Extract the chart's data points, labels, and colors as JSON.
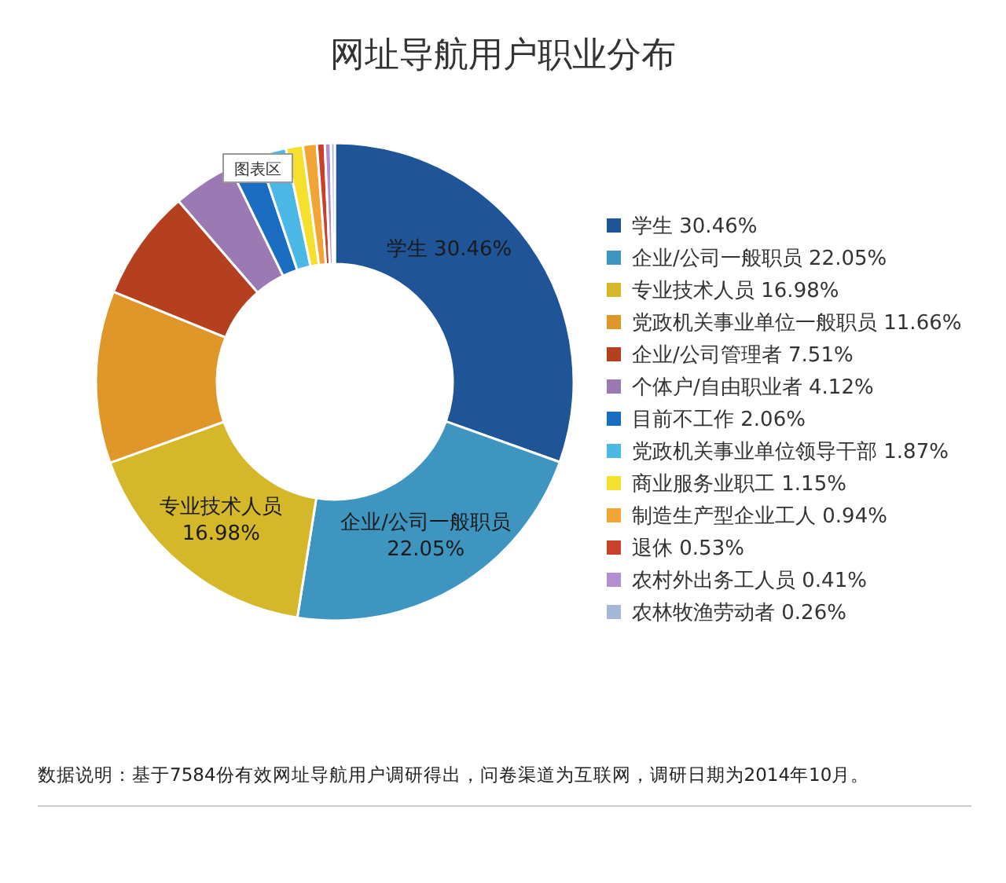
{
  "chart_data": {
    "type": "donut",
    "title": "网址导航用户职业分布",
    "categories": [
      "学生",
      "企业/公司一般职员",
      "专业技术人员",
      "党政机关事业单位一般职员",
      "企业/公司管理者",
      "个体户/自由职业者",
      "目前不工作",
      "党政机关事业单位领导干部",
      "商业服务业职工",
      "制造生产型企业工人",
      "退休",
      "农村外出务工人员",
      "农林牧渔劳动者"
    ],
    "values": [
      30.46,
      22.05,
      16.98,
      11.66,
      7.51,
      4.12,
      2.06,
      1.87,
      1.15,
      0.94,
      0.53,
      0.41,
      0.26
    ],
    "value_labels": [
      "30.46%",
      "22.05%",
      "16.98%",
      "11.66%",
      "7.51%",
      "4.12%",
      "2.06%",
      "1.87%",
      "1.15%",
      "0.94%",
      "0.53%",
      "0.41%",
      "0.26%"
    ],
    "colors": [
      "#1f5597",
      "#3e96c0",
      "#d4b829",
      "#e0972a",
      "#b5401f",
      "#9b79b3",
      "#1b6dc1",
      "#4bb8e6",
      "#f5e12d",
      "#f2a535",
      "#c9402b",
      "#b18fd0",
      "#a4b7d6"
    ],
    "legend": "right",
    "annotations": [
      "图表区",
      "数据说明：基于7584份有效网址导航用户调研得出，问卷渠道为互联网，调研日期为2014年10月。"
    ]
  }
}
